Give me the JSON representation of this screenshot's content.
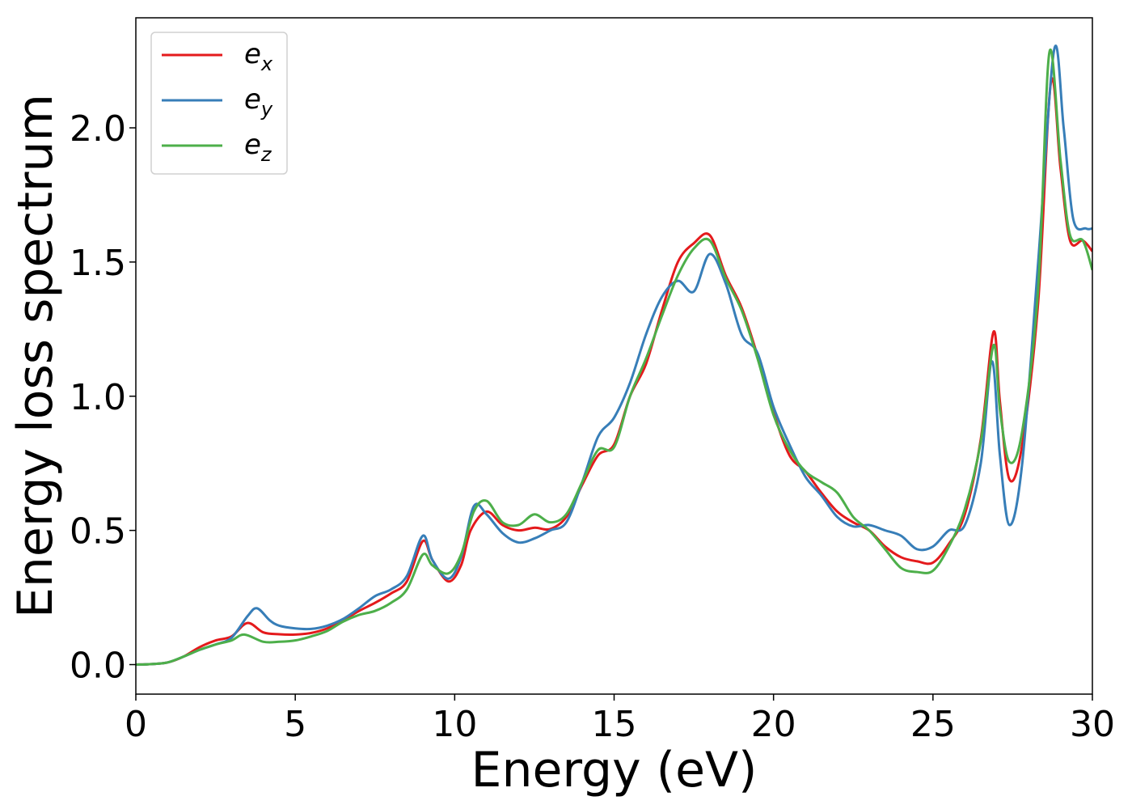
{
  "chart_data": {
    "type": "line",
    "title": "",
    "xlabel": "Energy (eV)",
    "ylabel": "Energy loss spectrum",
    "xlim": [
      0,
      30
    ],
    "ylim": [
      -0.11,
      2.41
    ],
    "xticks": [
      0,
      5,
      10,
      15,
      20,
      25,
      30
    ],
    "xtick_labels": [
      "0",
      "5",
      "10",
      "15",
      "20",
      "25",
      "30"
    ],
    "yticks": [
      0.0,
      0.5,
      1.0,
      1.5,
      2.0
    ],
    "ytick_labels": [
      "0.0",
      "0.5",
      "1.0",
      "1.5",
      "2.0"
    ],
    "grid": false,
    "legend_position": "top-left",
    "series": [
      {
        "name": "e",
        "subscript": "x",
        "color": "#e41a1c",
        "points": [
          [
            0,
            0
          ],
          [
            0.5,
            0.002
          ],
          [
            1,
            0.008
          ],
          [
            1.5,
            0.03
          ],
          [
            2,
            0.065
          ],
          [
            2.5,
            0.09
          ],
          [
            3,
            0.105
          ],
          [
            3.5,
            0.155
          ],
          [
            4,
            0.12
          ],
          [
            4.5,
            0.113
          ],
          [
            5,
            0.112
          ],
          [
            5.5,
            0.118
          ],
          [
            6,
            0.135
          ],
          [
            6.5,
            0.165
          ],
          [
            7,
            0.2
          ],
          [
            7.5,
            0.23
          ],
          [
            8,
            0.265
          ],
          [
            8.5,
            0.31
          ],
          [
            9,
            0.46
          ],
          [
            9.3,
            0.39
          ],
          [
            9.8,
            0.31
          ],
          [
            10.2,
            0.37
          ],
          [
            10.5,
            0.5
          ],
          [
            11,
            0.57
          ],
          [
            11.5,
            0.52
          ],
          [
            12,
            0.5
          ],
          [
            12.5,
            0.51
          ],
          [
            13,
            0.505
          ],
          [
            13.5,
            0.55
          ],
          [
            14,
            0.67
          ],
          [
            14.5,
            0.78
          ],
          [
            15,
            0.82
          ],
          [
            15.5,
            1.0
          ],
          [
            16,
            1.12
          ],
          [
            16.5,
            1.32
          ],
          [
            17,
            1.5
          ],
          [
            17.5,
            1.57
          ],
          [
            18,
            1.6
          ],
          [
            18.5,
            1.45
          ],
          [
            19,
            1.33
          ],
          [
            19.5,
            1.15
          ],
          [
            20,
            0.94
          ],
          [
            20.5,
            0.78
          ],
          [
            21,
            0.72
          ],
          [
            21.5,
            0.64
          ],
          [
            22,
            0.57
          ],
          [
            22.5,
            0.53
          ],
          [
            23,
            0.5
          ],
          [
            23.5,
            0.44
          ],
          [
            24,
            0.4
          ],
          [
            24.5,
            0.385
          ],
          [
            25,
            0.38
          ],
          [
            25.5,
            0.45
          ],
          [
            26,
            0.56
          ],
          [
            26.5,
            0.84
          ],
          [
            26.9,
            1.24
          ],
          [
            27.1,
            0.98
          ],
          [
            27.4,
            0.69
          ],
          [
            27.8,
            0.82
          ],
          [
            28.3,
            1.35
          ],
          [
            28.7,
            2.17
          ],
          [
            29,
            1.85
          ],
          [
            29.3,
            1.58
          ],
          [
            29.7,
            1.58
          ],
          [
            30,
            1.54
          ]
        ]
      },
      {
        "name": "e",
        "subscript": "y",
        "color": "#377eb8",
        "points": [
          [
            0,
            0
          ],
          [
            0.5,
            0.002
          ],
          [
            1,
            0.008
          ],
          [
            1.5,
            0.03
          ],
          [
            2,
            0.055
          ],
          [
            2.5,
            0.075
          ],
          [
            3,
            0.1
          ],
          [
            3.5,
            0.18
          ],
          [
            3.8,
            0.21
          ],
          [
            4.2,
            0.165
          ],
          [
            4.5,
            0.145
          ],
          [
            5,
            0.135
          ],
          [
            5.5,
            0.133
          ],
          [
            6,
            0.145
          ],
          [
            6.5,
            0.17
          ],
          [
            7,
            0.21
          ],
          [
            7.5,
            0.255
          ],
          [
            8,
            0.28
          ],
          [
            8.5,
            0.33
          ],
          [
            9,
            0.48
          ],
          [
            9.3,
            0.39
          ],
          [
            9.8,
            0.32
          ],
          [
            10.2,
            0.4
          ],
          [
            10.6,
            0.59
          ],
          [
            11,
            0.56
          ],
          [
            11.5,
            0.49
          ],
          [
            12,
            0.455
          ],
          [
            12.5,
            0.47
          ],
          [
            13,
            0.5
          ],
          [
            13.5,
            0.53
          ],
          [
            14,
            0.68
          ],
          [
            14.5,
            0.85
          ],
          [
            15,
            0.92
          ],
          [
            15.5,
            1.05
          ],
          [
            16,
            1.23
          ],
          [
            16.5,
            1.37
          ],
          [
            17,
            1.43
          ],
          [
            17.5,
            1.39
          ],
          [
            18,
            1.53
          ],
          [
            18.5,
            1.42
          ],
          [
            19,
            1.23
          ],
          [
            19.5,
            1.16
          ],
          [
            20,
            0.96
          ],
          [
            20.5,
            0.82
          ],
          [
            21,
            0.7
          ],
          [
            21.5,
            0.63
          ],
          [
            22,
            0.55
          ],
          [
            22.5,
            0.515
          ],
          [
            23,
            0.52
          ],
          [
            23.5,
            0.5
          ],
          [
            24,
            0.48
          ],
          [
            24.5,
            0.43
          ],
          [
            25,
            0.44
          ],
          [
            25.5,
            0.5
          ],
          [
            26,
            0.52
          ],
          [
            26.5,
            0.75
          ],
          [
            26.85,
            1.13
          ],
          [
            27.1,
            0.78
          ],
          [
            27.4,
            0.52
          ],
          [
            27.8,
            0.75
          ],
          [
            28.3,
            1.5
          ],
          [
            28.8,
            2.29
          ],
          [
            29.1,
            2.0
          ],
          [
            29.4,
            1.66
          ],
          [
            29.8,
            1.625
          ],
          [
            30,
            1.625
          ]
        ]
      },
      {
        "name": "e",
        "subscript": "z",
        "color": "#4daf4a",
        "points": [
          [
            0,
            0
          ],
          [
            0.5,
            0.002
          ],
          [
            1,
            0.008
          ],
          [
            1.5,
            0.03
          ],
          [
            2,
            0.055
          ],
          [
            2.5,
            0.075
          ],
          [
            3,
            0.09
          ],
          [
            3.4,
            0.112
          ],
          [
            4,
            0.085
          ],
          [
            4.5,
            0.085
          ],
          [
            5,
            0.09
          ],
          [
            5.5,
            0.105
          ],
          [
            6,
            0.125
          ],
          [
            6.5,
            0.16
          ],
          [
            7,
            0.185
          ],
          [
            7.5,
            0.2
          ],
          [
            8,
            0.23
          ],
          [
            8.5,
            0.28
          ],
          [
            9,
            0.41
          ],
          [
            9.3,
            0.37
          ],
          [
            9.8,
            0.34
          ],
          [
            10.2,
            0.41
          ],
          [
            10.6,
            0.57
          ],
          [
            11,
            0.61
          ],
          [
            11.5,
            0.53
          ],
          [
            12,
            0.52
          ],
          [
            12.5,
            0.56
          ],
          [
            13,
            0.53
          ],
          [
            13.5,
            0.56
          ],
          [
            14,
            0.68
          ],
          [
            14.5,
            0.8
          ],
          [
            15,
            0.81
          ],
          [
            15.5,
            1.0
          ],
          [
            16,
            1.14
          ],
          [
            16.5,
            1.3
          ],
          [
            17,
            1.45
          ],
          [
            17.5,
            1.55
          ],
          [
            18,
            1.58
          ],
          [
            18.5,
            1.44
          ],
          [
            19,
            1.32
          ],
          [
            19.5,
            1.14
          ],
          [
            20,
            0.93
          ],
          [
            20.5,
            0.8
          ],
          [
            21,
            0.72
          ],
          [
            21.5,
            0.68
          ],
          [
            22,
            0.64
          ],
          [
            22.5,
            0.55
          ],
          [
            23,
            0.5
          ],
          [
            23.5,
            0.43
          ],
          [
            24,
            0.36
          ],
          [
            24.5,
            0.345
          ],
          [
            25,
            0.35
          ],
          [
            25.5,
            0.44
          ],
          [
            26,
            0.58
          ],
          [
            26.5,
            0.83
          ],
          [
            26.9,
            1.19
          ],
          [
            27.1,
            0.95
          ],
          [
            27.4,
            0.755
          ],
          [
            27.8,
            0.87
          ],
          [
            28.3,
            1.4
          ],
          [
            28.65,
            2.28
          ],
          [
            29,
            1.88
          ],
          [
            29.3,
            1.6
          ],
          [
            29.7,
            1.58
          ],
          [
            30,
            1.47
          ]
        ]
      }
    ]
  }
}
